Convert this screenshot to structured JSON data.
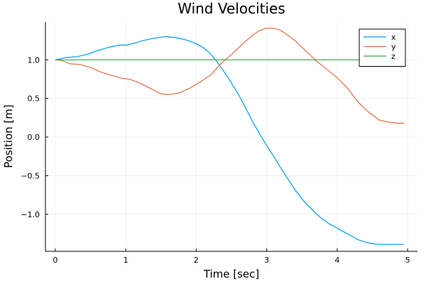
{
  "chart_data": {
    "type": "line",
    "title": "Wind Velocities",
    "xlabel": "Time [sec]",
    "ylabel": "Position [m]",
    "xlim": [
      -0.14,
      5.14
    ],
    "ylim": [
      -1.48,
      1.49
    ],
    "xticks": [
      0,
      1,
      2,
      3,
      4,
      5
    ],
    "xtick_labels": [
      "0",
      "1",
      "2",
      "3",
      "4",
      "5"
    ],
    "yticks": [
      -1.0,
      -0.5,
      0.0,
      0.5,
      1.0
    ],
    "ytick_labels": [
      "−1.0",
      "−0.5",
      "0.0",
      "0.5",
      "1.0"
    ],
    "grid": true,
    "legend_position": "top-right",
    "series": [
      {
        "name": "x",
        "color": "#009af9",
        "x": [
          0,
          0.15,
          0.3,
          0.45,
          0.6,
          0.75,
          0.9,
          1.0,
          1.1,
          1.25,
          1.4,
          1.55,
          1.7,
          1.85,
          2.0,
          2.1,
          2.2,
          2.3,
          2.4,
          2.5,
          2.6,
          2.7,
          2.8,
          2.9,
          3.0,
          3.1,
          3.2,
          3.3,
          3.4,
          3.5,
          3.6,
          3.7,
          3.8,
          3.9,
          4.0,
          4.1,
          4.2,
          4.3,
          4.4,
          4.5,
          4.6,
          4.7,
          4.8,
          4.95
        ],
        "y": [
          1.0,
          1.03,
          1.04,
          1.07,
          1.12,
          1.16,
          1.19,
          1.19,
          1.21,
          1.25,
          1.28,
          1.3,
          1.29,
          1.26,
          1.21,
          1.16,
          1.08,
          0.97,
          0.84,
          0.7,
          0.55,
          0.38,
          0.2,
          0.04,
          -0.11,
          -0.25,
          -0.4,
          -0.54,
          -0.68,
          -0.8,
          -0.9,
          -0.99,
          -1.07,
          -1.13,
          -1.18,
          -1.23,
          -1.28,
          -1.33,
          -1.36,
          -1.38,
          -1.39,
          -1.39,
          -1.39,
          -1.39
        ]
      },
      {
        "name": "y",
        "color": "#e26f46",
        "x": [
          0,
          0.1,
          0.2,
          0.35,
          0.5,
          0.65,
          0.8,
          0.95,
          1.05,
          1.2,
          1.35,
          1.5,
          1.6,
          1.75,
          1.9,
          2.05,
          2.2,
          2.35,
          2.5,
          2.65,
          2.8,
          2.9,
          3.0,
          3.1,
          3.2,
          3.3,
          3.4,
          3.55,
          3.7,
          3.85,
          4.0,
          4.15,
          4.3,
          4.45,
          4.6,
          4.75,
          4.85,
          4.95
        ],
        "y": [
          1.0,
          0.99,
          0.95,
          0.94,
          0.9,
          0.84,
          0.8,
          0.76,
          0.75,
          0.7,
          0.63,
          0.56,
          0.55,
          0.57,
          0.63,
          0.71,
          0.8,
          0.95,
          1.07,
          1.2,
          1.32,
          1.38,
          1.41,
          1.41,
          1.38,
          1.32,
          1.25,
          1.12,
          0.99,
          0.88,
          0.77,
          0.63,
          0.45,
          0.32,
          0.22,
          0.19,
          0.18,
          0.18
        ]
      },
      {
        "name": "z",
        "color": "#3da44d",
        "x": [
          0,
          4.95
        ],
        "y": [
          1.0,
          1.0
        ]
      }
    ]
  }
}
